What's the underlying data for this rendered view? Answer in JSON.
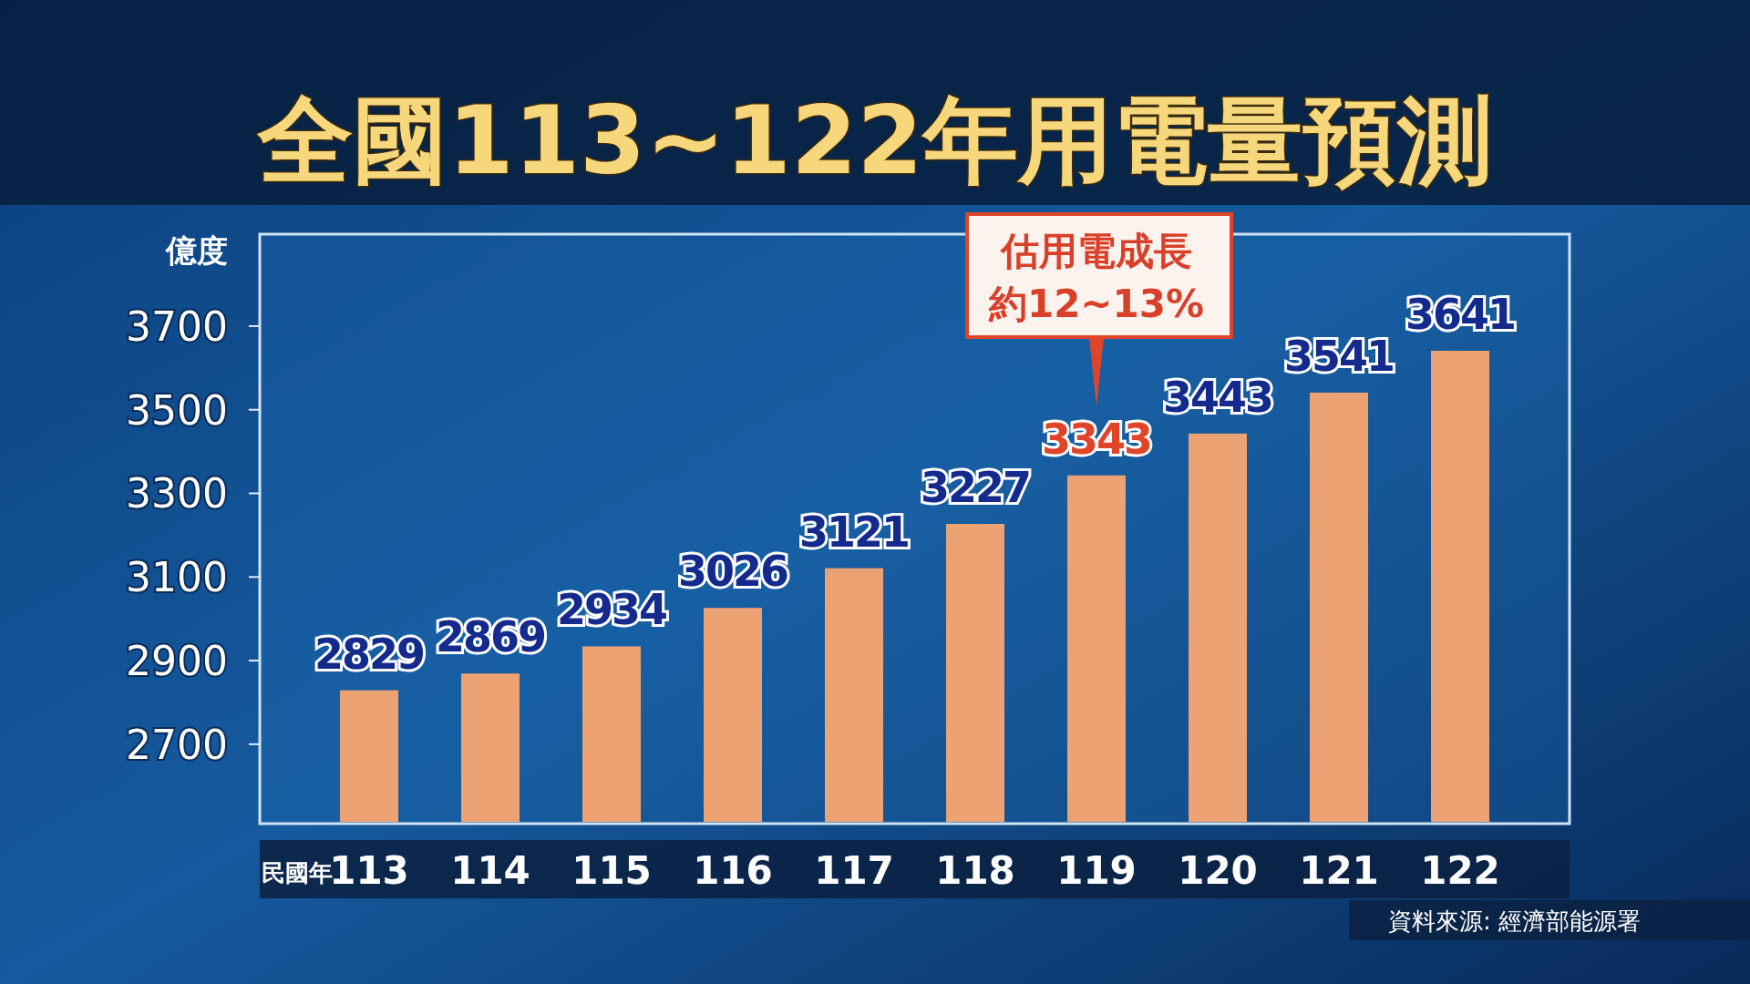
{
  "chart_data": {
    "type": "bar",
    "title": "全國113~122年用電量預測",
    "ylabel": "億度",
    "xlabel": "民國年",
    "categories": [
      "113",
      "114",
      "115",
      "116",
      "117",
      "118",
      "119",
      "120",
      "121",
      "122"
    ],
    "values": [
      2829,
      2869,
      2934,
      3026,
      3121,
      3227,
      3343,
      3443,
      3541,
      3641
    ],
    "color": "#eda274",
    "data_labels": true,
    "ylim": [
      2510,
      3920
    ],
    "yticks": [
      2700,
      2900,
      3100,
      3300,
      3500,
      3700
    ],
    "annotations": [
      "估用電成長約12~13%",
      "資料來源: 經濟部能源署"
    ]
  }
}
